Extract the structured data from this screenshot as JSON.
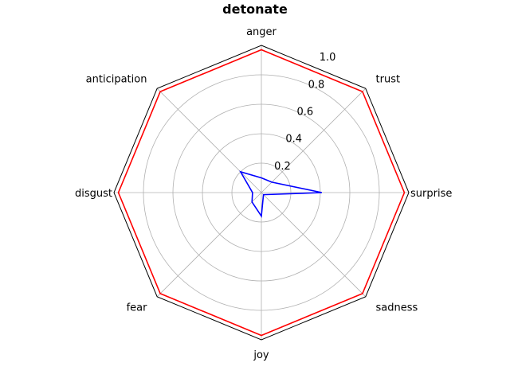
{
  "chart_data": {
    "type": "radar",
    "title": "detonate",
    "categories": [
      "anger",
      "trust",
      "surprise",
      "sadness",
      "joy",
      "fear",
      "disgust",
      "anticipation"
    ],
    "rlim": [
      0,
      1.0
    ],
    "r_ticks": [
      "0.2",
      "0.4",
      "0.6",
      "0.8",
      "1.0"
    ],
    "r_tick_values": [
      0.2,
      0.4,
      0.6,
      0.8,
      1.0
    ],
    "grid": true,
    "series": [
      {
        "color": "#ff0000",
        "values": [
          0.97,
          0.97,
          0.97,
          0.97,
          0.97,
          0.97,
          0.97,
          0.97
        ]
      },
      {
        "color": "#0000ff",
        "values": [
          0.1,
          0.1,
          0.41,
          0.02,
          0.16,
          0.09,
          0.06,
          0.2
        ]
      }
    ]
  }
}
